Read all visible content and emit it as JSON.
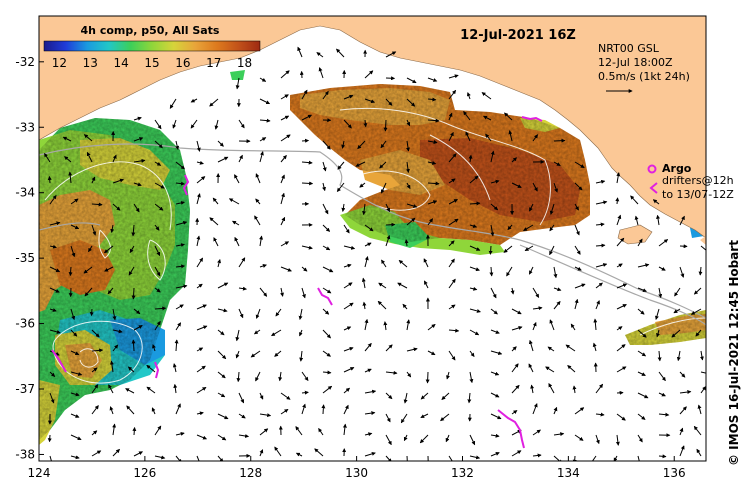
{
  "map": {
    "title": "12-Jul-2021 16Z",
    "colorbar": {
      "title": "4h comp, p50, All Sats",
      "ticks": [
        "12",
        "13",
        "14",
        "15",
        "16",
        "17",
        "18"
      ],
      "range": [
        11.5,
        18.5
      ],
      "colors": [
        "#1a1a8c",
        "#1f3cd9",
        "#1a9ae0",
        "#22c7c7",
        "#3ccf5a",
        "#8fd63a",
        "#d6d43a",
        "#e8a53a",
        "#dd7a1e",
        "#c2521a",
        "#9e2a12"
      ]
    },
    "info": {
      "product": "NRT00 GSL",
      "time": "12-Jul 18:00Z",
      "scale": "0.5m/s (1kt 24h)"
    },
    "argo": {
      "label": "Argo",
      "drifter_line1": "drifters@12h",
      "drifter_line2": "to 13/07-12Z",
      "color": "#e020e0"
    },
    "credit": "©  IMOS 16-Jul-2021 12:45 Hobart",
    "x_ticks": [
      "124",
      "126",
      "128",
      "130",
      "132",
      "134",
      "136"
    ],
    "y_ticks": [
      "-32",
      "-33",
      "-34",
      "-35",
      "-36",
      "-37",
      "-38"
    ],
    "x_range": [
      124,
      136.6
    ],
    "y_range": [
      -38.1,
      -31.3
    ],
    "land_color": "#fbc896"
  }
}
